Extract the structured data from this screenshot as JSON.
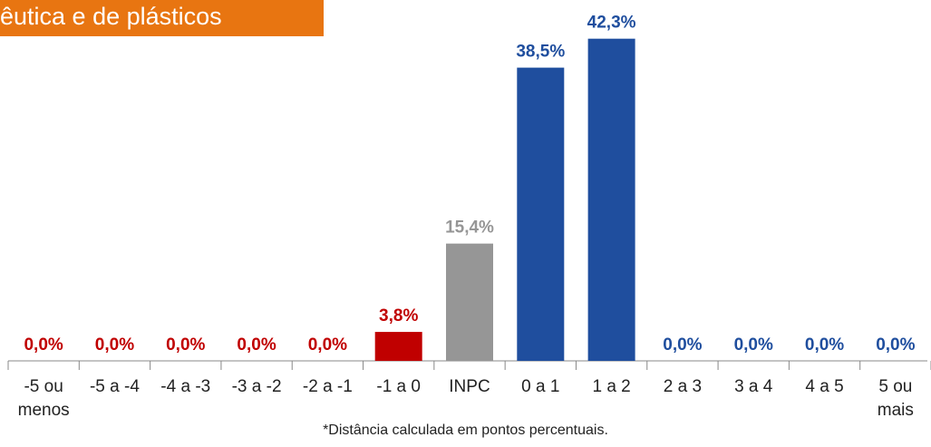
{
  "chart_data": {
    "type": "bar",
    "title": "êutica e de plásticos",
    "categories": [
      "-5 ou menos",
      "-5 a -4",
      "-4 a -3",
      "-3 a -2",
      "-2 a -1",
      "-1 a 0",
      "INPC",
      "0 a 1",
      "1 a 2",
      "2 a 3",
      "3 a 4",
      "4 a 5",
      "5 ou mais"
    ],
    "values": [
      0,
      0,
      0,
      0,
      0,
      3.8,
      15.4,
      38.5,
      42.3,
      0,
      0,
      0,
      0
    ],
    "value_labels": [
      "0,0%",
      "0,0%",
      "0,0%",
      "0,0%",
      "0,0%",
      "3,8%",
      "15,4%",
      "38,5%",
      "42,3%",
      "0,0%",
      "0,0%",
      "0,0%",
      "0,0%"
    ],
    "colors": [
      "#c00000",
      "#c00000",
      "#c00000",
      "#c00000",
      "#c00000",
      "#c00000",
      "#969696",
      "#1f4e9e",
      "#1f4e9e",
      "#1f4e9e",
      "#1f4e9e",
      "#1f4e9e",
      "#1f4e9e"
    ],
    "ylim": [
      0,
      45
    ],
    "footnote": "*Distância calculada em pontos percentuais."
  }
}
